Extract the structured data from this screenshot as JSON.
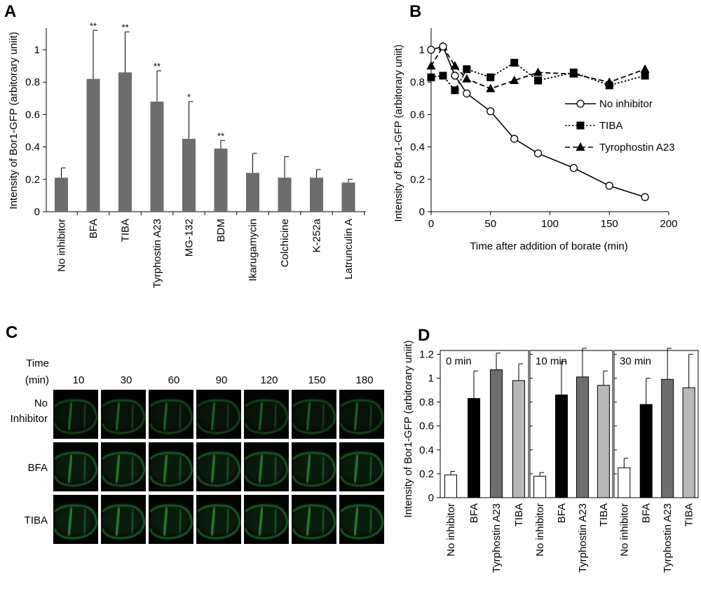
{
  "panels": {
    "A": {
      "letter": "A",
      "chart_data": {
        "type": "bar",
        "ylabel": "Intensity of Bor1-GFP (arbitorary uniit)",
        "ylim": [
          0,
          1.2
        ],
        "yticks": [
          "0",
          "0.2",
          "0.4",
          "0.6",
          "0.8",
          "1"
        ],
        "ytick_values": [
          0,
          0.2,
          0.4,
          0.6,
          0.8,
          1
        ],
        "categories": [
          "No inhibitor",
          "BFA",
          "TIBA",
          "Tyrphostin A23",
          "MG-132",
          "BDM",
          "Ikarugamycin",
          "Colchicine",
          "K-252a",
          "Latrunculin A"
        ],
        "values": [
          0.21,
          0.82,
          0.86,
          0.68,
          0.45,
          0.39,
          0.24,
          0.21,
          0.21,
          0.18
        ],
        "errors": [
          0.06,
          0.3,
          0.25,
          0.19,
          0.23,
          0.05,
          0.12,
          0.13,
          0.05,
          0.02
        ],
        "significance": [
          "",
          "**",
          "**",
          "**",
          "*",
          "**",
          "",
          "",
          "",
          ""
        ],
        "bar_color": "#6d6d6d"
      }
    },
    "B": {
      "letter": "B",
      "chart_data": {
        "type": "line",
        "xlabel": "Time after addition of borate (min)",
        "ylabel": "Intensity of Bor1-GFP (arbitorary uniit)",
        "xlim": [
          0,
          200
        ],
        "ylim": [
          0,
          1.1
        ],
        "xticks": [
          "0",
          "50",
          "100",
          "150",
          "200"
        ],
        "xtick_values": [
          0,
          50,
          100,
          150,
          200
        ],
        "yticks": [
          "0",
          "0.2",
          "0.4",
          "0.6",
          "0.8",
          "1"
        ],
        "ytick_values": [
          0,
          0.2,
          0.4,
          0.6,
          0.8,
          1
        ],
        "legend_position": "right",
        "series": [
          {
            "name": "No inhibitor",
            "marker": "open-circle",
            "dash": "solid",
            "x": [
              0,
              10,
              20,
              30,
              50,
              70,
              90,
              120,
              150,
              180
            ],
            "y": [
              1.0,
              1.02,
              0.84,
              0.73,
              0.62,
              0.45,
              0.36,
              0.27,
              0.16,
              0.09
            ]
          },
          {
            "name": "TIBA",
            "marker": "filled-square",
            "dash": "dotted",
            "x": [
              0,
              10,
              20,
              30,
              50,
              70,
              90,
              120,
              150,
              180
            ],
            "y": [
              0.83,
              0.84,
              0.75,
              0.88,
              0.83,
              0.92,
              0.81,
              0.86,
              0.78,
              0.84
            ]
          },
          {
            "name": "Tyrophostin A23",
            "marker": "filled-triangle",
            "dash": "dashed",
            "x": [
              0,
              10,
              20,
              30,
              50,
              70,
              90,
              120,
              150,
              180
            ],
            "y": [
              0.9,
              1.02,
              0.9,
              0.82,
              0.76,
              0.81,
              0.86,
              0.85,
              0.8,
              0.88
            ]
          }
        ]
      }
    },
    "C": {
      "letter": "C",
      "time_label_line1": "Time",
      "time_label_line2": "(min)",
      "times": [
        "10",
        "30",
        "60",
        "90",
        "120",
        "150",
        "180"
      ],
      "rows": [
        {
          "label_line1": "No",
          "label_line2": "Inhibitor",
          "signal": 0.55
        },
        {
          "label_line1": "BFA",
          "label_line2": "",
          "signal": 0.8
        },
        {
          "label_line1": "TIBA",
          "label_line2": "",
          "signal": 0.85
        }
      ]
    },
    "D": {
      "letter": "D",
      "chart_data": {
        "type": "bar",
        "ylabel": "Intensity of Bor1-GFP (arbitorary uniit)",
        "ylim": [
          0,
          1.3
        ],
        "yticks": [
          "0",
          "0.2",
          "0.4",
          "0.6",
          "0.8",
          "1",
          "1.2"
        ],
        "ytick_values": [
          0,
          0.2,
          0.4,
          0.6,
          0.8,
          1,
          1.2
        ],
        "categories": [
          "No inhibitor",
          "BFA",
          "Tyrphostin A23",
          "TIBA"
        ],
        "bar_colors": [
          "#ffffff",
          "#000000",
          "#6e6e6e",
          "#b8b8b8"
        ],
        "subpanels": [
          {
            "label": "0 min",
            "values": [
              0.19,
              0.83,
              1.07,
              0.98
            ],
            "errors": [
              0.03,
              0.23,
              0.14,
              0.14
            ]
          },
          {
            "label": "10 min",
            "values": [
              0.18,
              0.86,
              1.01,
              0.94
            ],
            "errors": [
              0.03,
              0.28,
              0.24,
              0.12
            ]
          },
          {
            "label": "30 min",
            "values": [
              0.25,
              0.78,
              0.99,
              0.92
            ],
            "errors": [
              0.08,
              0.22,
              0.26,
              0.28
            ]
          }
        ]
      }
    }
  }
}
